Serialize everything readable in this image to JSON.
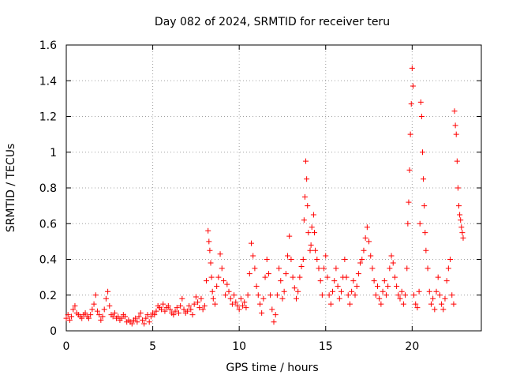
{
  "chart_data": {
    "type": "scatter",
    "title": "Day 082 of 2024, SRMTID for receiver teru",
    "xlabel": "GPS time / hours",
    "ylabel": "SRMTID / TECUs",
    "xlim": [
      0,
      24
    ],
    "ylim": [
      0,
      1.6
    ],
    "xticks": [
      0,
      5,
      10,
      15,
      20
    ],
    "xtick_labels": [
      "0",
      "5",
      "10",
      "15",
      "20"
    ],
    "yticks": [
      0,
      0.2,
      0.4,
      0.6,
      0.8,
      1.0,
      1.2,
      1.4,
      1.6
    ],
    "ytick_labels": [
      "0",
      "0.2",
      "0.4",
      "0.6",
      "0.8",
      "1",
      "1.2",
      "1.4",
      "1.6"
    ],
    "grid": true,
    "marker": "+",
    "colors": {
      "marker": "#ff0000",
      "grid": "#a0a0a0",
      "axes": "#000000"
    },
    "series": [
      {
        "name": "SRMTID",
        "points": [
          [
            0.0,
            0.07
          ],
          [
            0.1,
            0.09
          ],
          [
            0.2,
            0.06
          ],
          [
            0.3,
            0.08
          ],
          [
            0.4,
            0.12
          ],
          [
            0.5,
            0.14
          ],
          [
            0.6,
            0.1
          ],
          [
            0.7,
            0.09
          ],
          [
            0.8,
            0.08
          ],
          [
            0.9,
            0.07
          ],
          [
            1.0,
            0.09
          ],
          [
            1.1,
            0.1
          ],
          [
            1.2,
            0.08
          ],
          [
            1.3,
            0.07
          ],
          [
            1.4,
            0.09
          ],
          [
            1.5,
            0.12
          ],
          [
            1.6,
            0.15
          ],
          [
            1.7,
            0.2
          ],
          [
            1.8,
            0.11
          ],
          [
            1.9,
            0.09
          ],
          [
            2.0,
            0.06
          ],
          [
            2.1,
            0.08
          ],
          [
            2.2,
            0.12
          ],
          [
            2.3,
            0.18
          ],
          [
            2.4,
            0.22
          ],
          [
            2.5,
            0.14
          ],
          [
            2.6,
            0.09
          ],
          [
            2.7,
            0.08
          ],
          [
            2.8,
            0.1
          ],
          [
            2.9,
            0.07
          ],
          [
            3.0,
            0.08
          ],
          [
            3.1,
            0.06
          ],
          [
            3.2,
            0.07
          ],
          [
            3.3,
            0.09
          ],
          [
            3.4,
            0.08
          ],
          [
            3.5,
            0.05
          ],
          [
            3.6,
            0.06
          ],
          [
            3.7,
            0.05
          ],
          [
            3.8,
            0.04
          ],
          [
            3.9,
            0.06
          ],
          [
            4.0,
            0.07
          ],
          [
            4.1,
            0.05
          ],
          [
            4.2,
            0.08
          ],
          [
            4.3,
            0.1
          ],
          [
            4.4,
            0.06
          ],
          [
            4.5,
            0.04
          ],
          [
            4.6,
            0.07
          ],
          [
            4.7,
            0.09
          ],
          [
            4.8,
            0.05
          ],
          [
            4.9,
            0.08
          ],
          [
            5.0,
            0.1
          ],
          [
            5.1,
            0.09
          ],
          [
            5.2,
            0.11
          ],
          [
            5.3,
            0.14
          ],
          [
            5.4,
            0.13
          ],
          [
            5.5,
            0.12
          ],
          [
            5.6,
            0.15
          ],
          [
            5.7,
            0.11
          ],
          [
            5.8,
            0.13
          ],
          [
            5.9,
            0.14
          ],
          [
            6.0,
            0.12
          ],
          [
            6.1,
            0.1
          ],
          [
            6.2,
            0.09
          ],
          [
            6.3,
            0.11
          ],
          [
            6.4,
            0.13
          ],
          [
            6.5,
            0.1
          ],
          [
            6.6,
            0.14
          ],
          [
            6.7,
            0.18
          ],
          [
            6.8,
            0.12
          ],
          [
            6.9,
            0.1
          ],
          [
            7.0,
            0.11
          ],
          [
            7.1,
            0.14
          ],
          [
            7.2,
            0.12
          ],
          [
            7.3,
            0.09
          ],
          [
            7.4,
            0.15
          ],
          [
            7.5,
            0.19
          ],
          [
            7.6,
            0.16
          ],
          [
            7.7,
            0.13
          ],
          [
            7.8,
            0.18
          ],
          [
            7.9,
            0.12
          ],
          [
            8.0,
            0.14
          ],
          [
            8.1,
            0.28
          ],
          [
            8.2,
            0.56
          ],
          [
            8.25,
            0.5
          ],
          [
            8.3,
            0.45
          ],
          [
            8.35,
            0.38
          ],
          [
            8.4,
            0.3
          ],
          [
            8.45,
            0.22
          ],
          [
            8.5,
            0.18
          ],
          [
            8.6,
            0.15
          ],
          [
            8.7,
            0.25
          ],
          [
            8.8,
            0.3
          ],
          [
            8.9,
            0.43
          ],
          [
            9.0,
            0.35
          ],
          [
            9.1,
            0.28
          ],
          [
            9.2,
            0.2
          ],
          [
            9.3,
            0.26
          ],
          [
            9.4,
            0.22
          ],
          [
            9.5,
            0.18
          ],
          [
            9.6,
            0.15
          ],
          [
            9.7,
            0.2
          ],
          [
            9.8,
            0.16
          ],
          [
            9.9,
            0.14
          ],
          [
            10.0,
            0.12
          ],
          [
            10.1,
            0.18
          ],
          [
            10.2,
            0.14
          ],
          [
            10.3,
            0.16
          ],
          [
            10.4,
            0.13
          ],
          [
            10.5,
            0.2
          ],
          [
            10.6,
            0.32
          ],
          [
            10.7,
            0.49
          ],
          [
            10.8,
            0.42
          ],
          [
            10.9,
            0.35
          ],
          [
            11.0,
            0.25
          ],
          [
            11.1,
            0.2
          ],
          [
            11.2,
            0.15
          ],
          [
            11.3,
            0.1
          ],
          [
            11.4,
            0.18
          ],
          [
            11.5,
            0.3
          ],
          [
            11.6,
            0.4
          ],
          [
            11.7,
            0.32
          ],
          [
            11.8,
            0.2
          ],
          [
            11.9,
            0.12
          ],
          [
            12.0,
            0.05
          ],
          [
            12.1,
            0.09
          ],
          [
            12.2,
            0.2
          ],
          [
            12.3,
            0.35
          ],
          [
            12.4,
            0.28
          ],
          [
            12.5,
            0.18
          ],
          [
            12.6,
            0.22
          ],
          [
            12.7,
            0.32
          ],
          [
            12.8,
            0.42
          ],
          [
            12.9,
            0.53
          ],
          [
            13.0,
            0.4
          ],
          [
            13.1,
            0.3
          ],
          [
            13.2,
            0.24
          ],
          [
            13.3,
            0.18
          ],
          [
            13.4,
            0.22
          ],
          [
            13.5,
            0.3
          ],
          [
            13.6,
            0.36
          ],
          [
            13.7,
            0.4
          ],
          [
            13.75,
            0.62
          ],
          [
            13.8,
            0.75
          ],
          [
            13.85,
            0.95
          ],
          [
            13.9,
            0.85
          ],
          [
            13.95,
            0.7
          ],
          [
            14.0,
            0.55
          ],
          [
            14.1,
            0.45
          ],
          [
            14.15,
            0.48
          ],
          [
            14.2,
            0.58
          ],
          [
            14.3,
            0.65
          ],
          [
            14.35,
            0.55
          ],
          [
            14.4,
            0.45
          ],
          [
            14.5,
            0.4
          ],
          [
            14.6,
            0.35
          ],
          [
            14.7,
            0.28
          ],
          [
            14.8,
            0.2
          ],
          [
            14.9,
            0.35
          ],
          [
            15.0,
            0.42
          ],
          [
            15.1,
            0.3
          ],
          [
            15.2,
            0.2
          ],
          [
            15.3,
            0.15
          ],
          [
            15.4,
            0.22
          ],
          [
            15.5,
            0.28
          ],
          [
            15.6,
            0.35
          ],
          [
            15.7,
            0.25
          ],
          [
            15.8,
            0.18
          ],
          [
            15.9,
            0.22
          ],
          [
            16.0,
            0.3
          ],
          [
            16.1,
            0.4
          ],
          [
            16.2,
            0.3
          ],
          [
            16.3,
            0.2
          ],
          [
            16.4,
            0.15
          ],
          [
            16.5,
            0.22
          ],
          [
            16.6,
            0.28
          ],
          [
            16.7,
            0.2
          ],
          [
            16.8,
            0.25
          ],
          [
            16.9,
            0.32
          ],
          [
            17.0,
            0.38
          ],
          [
            17.1,
            0.4
          ],
          [
            17.2,
            0.45
          ],
          [
            17.3,
            0.52
          ],
          [
            17.4,
            0.58
          ],
          [
            17.5,
            0.5
          ],
          [
            17.6,
            0.42
          ],
          [
            17.7,
            0.35
          ],
          [
            17.8,
            0.28
          ],
          [
            17.9,
            0.2
          ],
          [
            18.0,
            0.25
          ],
          [
            18.1,
            0.18
          ],
          [
            18.2,
            0.15
          ],
          [
            18.3,
            0.22
          ],
          [
            18.4,
            0.28
          ],
          [
            18.5,
            0.2
          ],
          [
            18.6,
            0.25
          ],
          [
            18.7,
            0.35
          ],
          [
            18.8,
            0.42
          ],
          [
            18.9,
            0.38
          ],
          [
            19.0,
            0.3
          ],
          [
            19.1,
            0.25
          ],
          [
            19.2,
            0.2
          ],
          [
            19.3,
            0.18
          ],
          [
            19.4,
            0.22
          ],
          [
            19.5,
            0.15
          ],
          [
            19.6,
            0.2
          ],
          [
            19.7,
            0.35
          ],
          [
            19.75,
            0.6
          ],
          [
            19.8,
            0.72
          ],
          [
            19.85,
            0.9
          ],
          [
            19.9,
            1.1
          ],
          [
            19.95,
            1.27
          ],
          [
            20.0,
            1.47
          ],
          [
            20.05,
            1.37
          ],
          [
            20.1,
            0.2
          ],
          [
            20.2,
            0.15
          ],
          [
            20.3,
            0.13
          ],
          [
            20.4,
            0.22
          ],
          [
            20.45,
            0.6
          ],
          [
            20.5,
            1.28
          ],
          [
            20.55,
            1.2
          ],
          [
            20.6,
            1.0
          ],
          [
            20.65,
            0.85
          ],
          [
            20.7,
            0.7
          ],
          [
            20.75,
            0.55
          ],
          [
            20.8,
            0.45
          ],
          [
            20.9,
            0.35
          ],
          [
            21.0,
            0.22
          ],
          [
            21.1,
            0.15
          ],
          [
            21.2,
            0.18
          ],
          [
            21.3,
            0.12
          ],
          [
            21.4,
            0.22
          ],
          [
            21.5,
            0.3
          ],
          [
            21.6,
            0.2
          ],
          [
            21.7,
            0.15
          ],
          [
            21.8,
            0.12
          ],
          [
            21.9,
            0.18
          ],
          [
            22.0,
            0.28
          ],
          [
            22.1,
            0.35
          ],
          [
            22.2,
            0.4
          ],
          [
            22.3,
            0.2
          ],
          [
            22.4,
            0.15
          ],
          [
            22.45,
            1.23
          ],
          [
            22.5,
            1.15
          ],
          [
            22.55,
            1.1
          ],
          [
            22.6,
            0.95
          ],
          [
            22.65,
            0.8
          ],
          [
            22.7,
            0.7
          ],
          [
            22.75,
            0.65
          ],
          [
            22.8,
            0.62
          ],
          [
            22.85,
            0.58
          ],
          [
            22.9,
            0.55
          ],
          [
            22.95,
            0.52
          ]
        ]
      }
    ]
  }
}
